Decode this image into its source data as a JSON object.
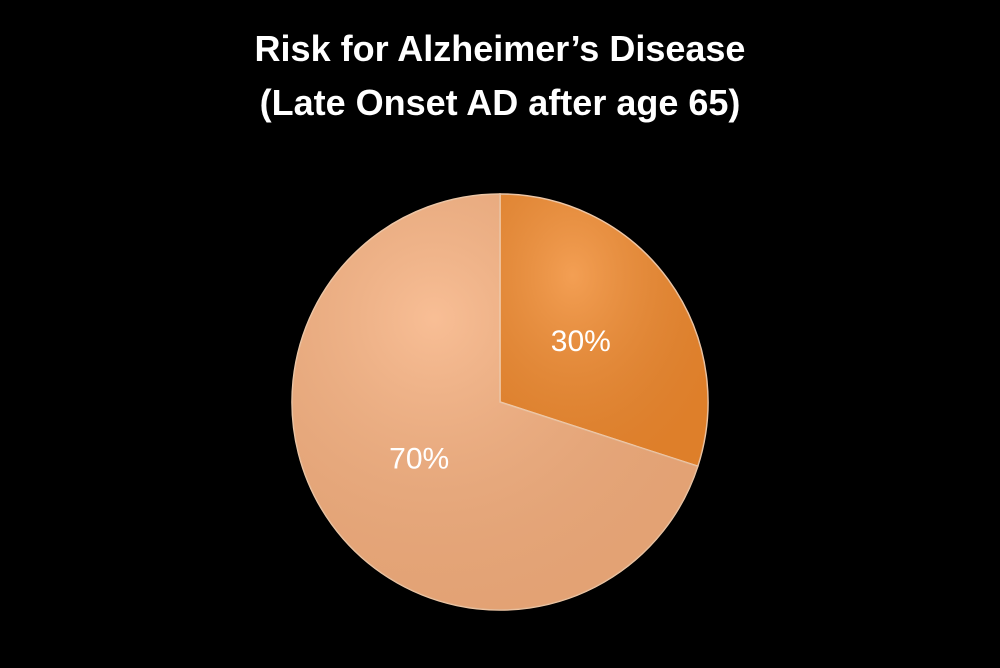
{
  "chart_data": {
    "type": "pie",
    "title": "Risk for Alzheimer’s Disease",
    "subtitle": "(Late Onset AD after age 65)",
    "slices": [
      {
        "label": "30%",
        "value": 30,
        "color": "#f18a2e"
      },
      {
        "label": "70%",
        "value": 70,
        "color": "#f7b07e"
      }
    ],
    "start_angle_deg": 0,
    "direction": "clockwise",
    "legend": "none",
    "background": "#000000"
  }
}
